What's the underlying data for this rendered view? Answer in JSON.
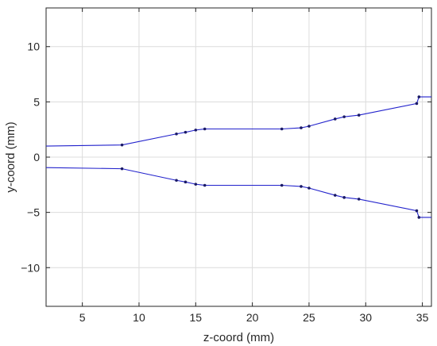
{
  "chart_data": {
    "type": "line",
    "xlabel": "z-coord (mm)",
    "ylabel": "y-coord (mm)",
    "xlim": [
      1.8,
      35.8
    ],
    "ylim": [
      -13.5,
      13.5
    ],
    "xticks": [
      5,
      10,
      15,
      20,
      25,
      30,
      35
    ],
    "yticks": [
      10,
      5,
      0,
      -5,
      -10
    ],
    "grid": true,
    "series": [
      {
        "color": "#2222cc",
        "x": [
          1.8,
          8.5,
          13.3,
          14.1,
          15.0,
          15.8,
          22.6,
          24.3,
          25.0,
          27.3,
          28.1,
          29.4,
          34.5,
          34.7,
          35.8
        ],
        "y": [
          1.0,
          1.1,
          2.1,
          2.25,
          2.45,
          2.55,
          2.55,
          2.65,
          2.8,
          3.45,
          3.65,
          3.8,
          4.85,
          5.45,
          5.45
        ]
      },
      {
        "color": "#2222cc",
        "x": [
          1.8,
          8.5,
          13.3,
          14.1,
          15.0,
          15.8,
          22.6,
          24.3,
          25.0,
          27.3,
          28.1,
          29.4,
          34.5,
          34.7,
          35.8
        ],
        "y": [
          -0.95,
          -1.05,
          -2.1,
          -2.25,
          -2.45,
          -2.55,
          -2.55,
          -2.65,
          -2.8,
          -3.45,
          -3.65,
          -3.8,
          -4.85,
          -5.45,
          -5.45
        ]
      }
    ]
  }
}
